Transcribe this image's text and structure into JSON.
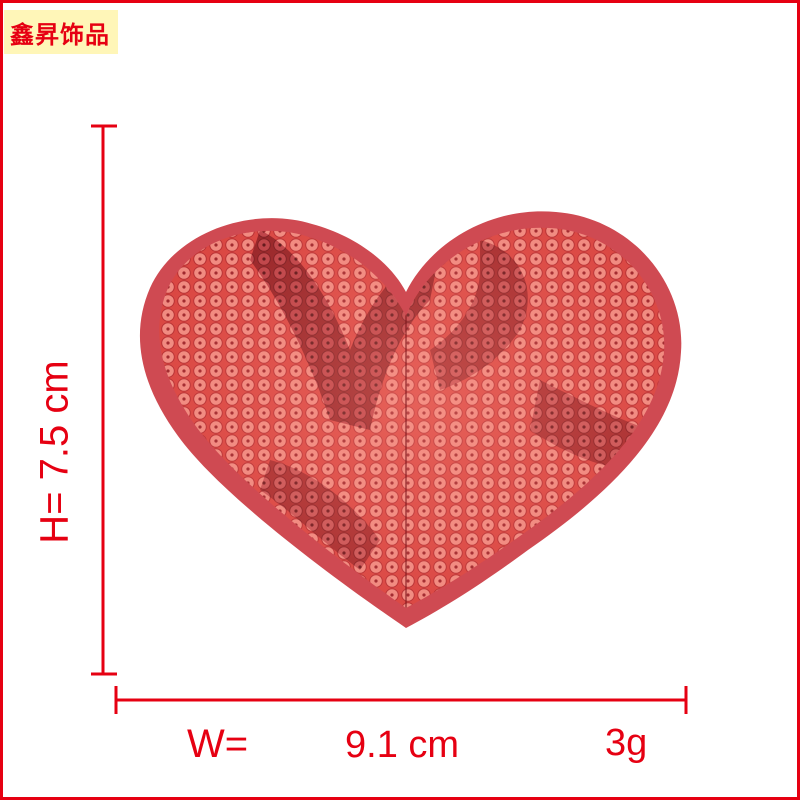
{
  "brand": {
    "text": "鑫昇饰品"
  },
  "dimensions": {
    "height_text": "H=    7.5 cm",
    "width_label": "W=",
    "width_value": "9.1 cm",
    "weight": "3g"
  },
  "colors": {
    "accent": "#e60012",
    "brand_bg": "#fff6b8",
    "felt": "#cf4a52",
    "sequin_light": "#f08a80",
    "sequin_mid": "#d8423e",
    "sequin_dark": "#8a1a22"
  }
}
